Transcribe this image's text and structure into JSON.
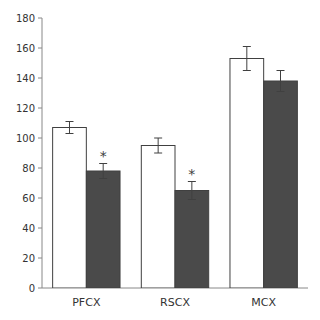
{
  "chart_data": {
    "type": "bar",
    "categories": [
      "PFCX",
      "RSCX",
      "MCX"
    ],
    "series": [
      {
        "color": "#ffffff",
        "values": [
          107,
          95,
          153
        ],
        "errors": [
          4,
          5,
          8
        ]
      },
      {
        "color": "#4a4a4a",
        "values": [
          78,
          65,
          138
        ],
        "errors": [
          5,
          6,
          7
        ]
      }
    ],
    "annotations": [
      {
        "text": "*",
        "category": "PFCX",
        "series": 1
      },
      {
        "text": "*",
        "category": "RSCX",
        "series": 1
      }
    ],
    "ylim": [
      0,
      180
    ],
    "yticks": [
      0,
      20,
      40,
      60,
      80,
      100,
      120,
      140,
      160,
      180
    ],
    "grid": false
  }
}
